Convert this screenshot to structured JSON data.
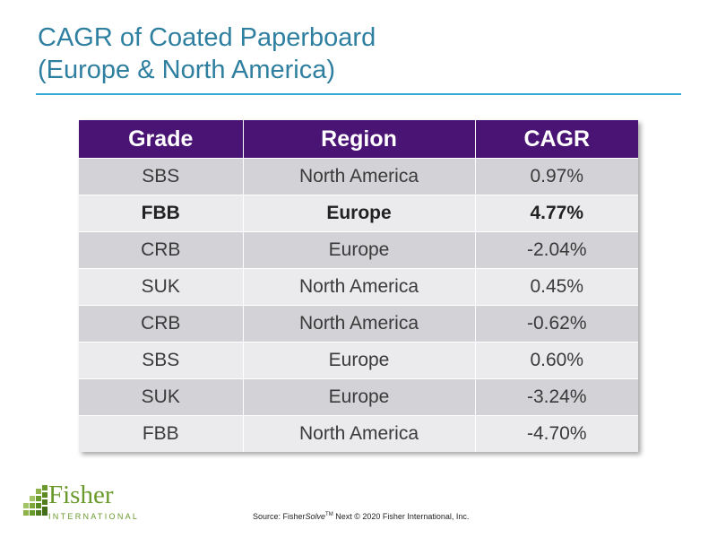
{
  "title": {
    "line1": "CAGR of Coated Paperboard",
    "line2": "(Europe & North America)"
  },
  "table": {
    "headers": [
      "Grade",
      "Region",
      "CAGR"
    ],
    "rows": [
      {
        "grade": "SBS",
        "region": "North America",
        "cagr": "0.97%"
      },
      {
        "grade": "FBB",
        "region": "Europe",
        "cagr": "4.77%"
      },
      {
        "grade": "CRB",
        "region": "Europe",
        "cagr": "-2.04%"
      },
      {
        "grade": "SUK",
        "region": "North America",
        "cagr": "0.45%"
      },
      {
        "grade": "CRB",
        "region": "North America",
        "cagr": "-0.62%"
      },
      {
        "grade": "SBS",
        "region": "Europe",
        "cagr": "0.60%"
      },
      {
        "grade": "SUK",
        "region": "Europe",
        "cagr": "-3.24%"
      },
      {
        "grade": "FBB",
        "region": "North America",
        "cagr": "-4.70%"
      }
    ],
    "header_color": "#4a1475",
    "highlighted_row": 1
  },
  "logo": {
    "name": "Fisher",
    "subtitle": "INTERNATIONAL",
    "icon": "fisher-logo-icon",
    "color": "#6a9a2c"
  },
  "source": {
    "prefix": "Source: Fisher",
    "italic": "Solve",
    "tm": "TM",
    "suffix": " Next © 2020 Fisher International, Inc."
  }
}
